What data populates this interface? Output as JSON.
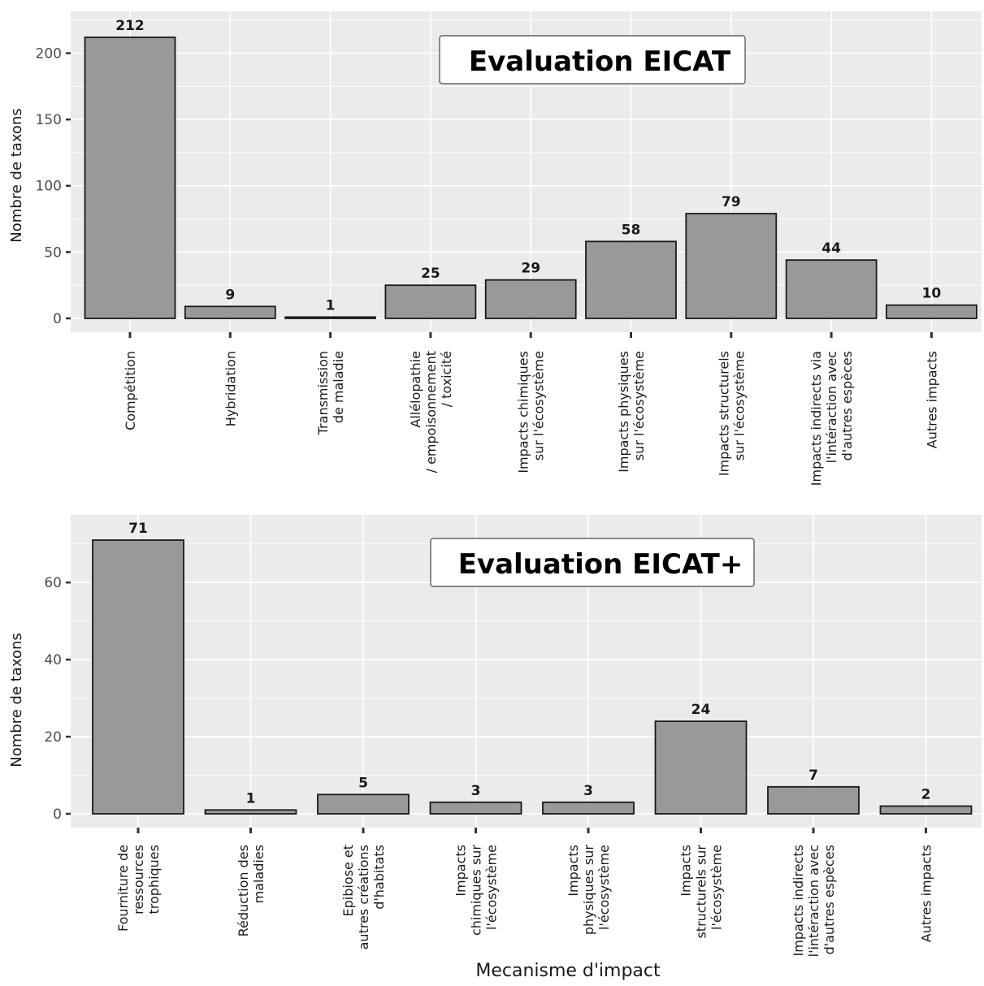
{
  "colors": {
    "panel": "#ebebeb",
    "grid": "#ffffff",
    "bar_fill": "#999999",
    "bar_stroke": "#1a1a1a"
  },
  "chart_data": [
    {
      "type": "bar",
      "title": "Evaluation EICAT",
      "ylabel": "Nombre de taxons",
      "xlabel": "",
      "ylim": [
        0,
        215
      ],
      "yticks": [
        0,
        50,
        100,
        150,
        200
      ],
      "categories": [
        [
          "Compétition"
        ],
        [
          "Hybridation"
        ],
        [
          "Transmission",
          "de maladie"
        ],
        [
          "Allélopathie",
          "/ empoisonnement",
          "/ toxicité"
        ],
        [
          "Impacts chimiques",
          "sur l'écosystème"
        ],
        [
          "Impacts physiques",
          "sur l'écosystème"
        ],
        [
          "Impacts structurels",
          "sur l'écosystème"
        ],
        [
          "Impacts indirects via",
          "l'intéraction avec",
          "d'autres espèces"
        ],
        [
          "Autres impacts"
        ]
      ],
      "values": [
        212,
        9,
        1,
        25,
        29,
        58,
        79,
        44,
        10
      ],
      "legend": "none"
    },
    {
      "type": "bar",
      "title": "Evaluation EICAT+",
      "ylabel": "Nombre de taxons",
      "xlabel": "Mecanisme d'impact",
      "ylim": [
        0,
        71
      ],
      "yticks": [
        0,
        20,
        40,
        60
      ],
      "categories": [
        [
          "Fourniture de",
          "ressources",
          "trophiques"
        ],
        [
          "Réduction des",
          "maladies"
        ],
        [
          "Epibiose et",
          "autres créations",
          "d'habitats"
        ],
        [
          "Impacts",
          "chimiques sur",
          "l'écosystème"
        ],
        [
          "Impacts",
          "physiques sur",
          "l'écosystème"
        ],
        [
          "Impacts",
          "structurels sur",
          "l'écosystème"
        ],
        [
          "Impacts indirects",
          "l'intéraction avec",
          "d'autres espèces"
        ],
        [
          "Autres impacts"
        ]
      ],
      "values": [
        71,
        1,
        5,
        3,
        3,
        24,
        7,
        2
      ],
      "legend": "none"
    }
  ]
}
